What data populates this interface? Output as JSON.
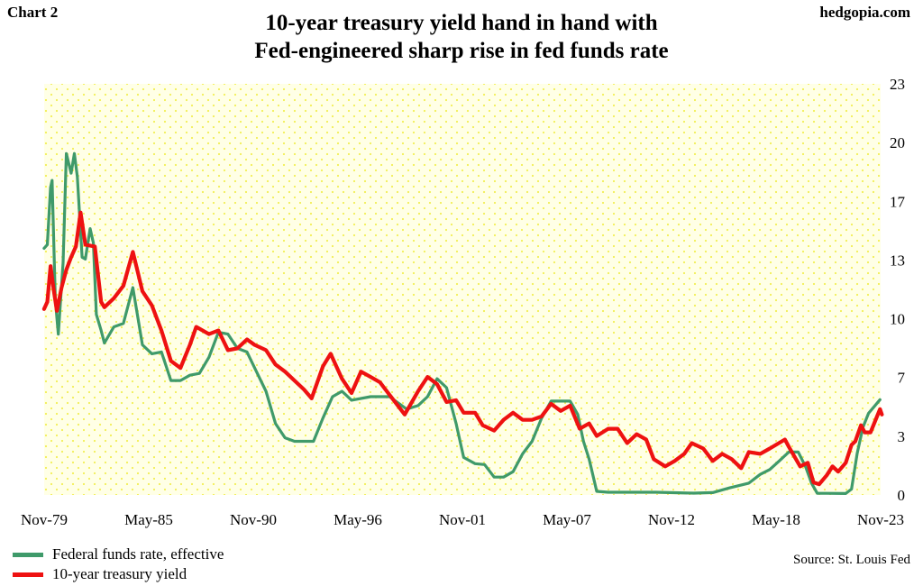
{
  "header": {
    "chart_label": "Chart 2",
    "brand": "hedgopia.com",
    "title_line1": "10-year treasury yield hand in hand with",
    "title_line2": "Fed-engineered sharp rise in fed funds rate"
  },
  "footer": {
    "source": "Source: St. Louis Fed"
  },
  "colors": {
    "fed_funds": "#3f9a6a",
    "treasury": "#ee1111",
    "plot_background": "#ffffe6",
    "plot_dots": "#f2ef55"
  },
  "chart_data": {
    "type": "line",
    "title": "10-year treasury yield hand in hand with Fed-engineered sharp rise in fed funds rate",
    "x_tick_labels": [
      "Nov-79",
      "May-85",
      "Nov-90",
      "May-96",
      "Nov-01",
      "May-07",
      "Nov-12",
      "May-18",
      "Nov-23"
    ],
    "y_tick_labels": [
      "23",
      "20",
      "17",
      "13",
      "10",
      "7",
      "3",
      "0"
    ],
    "x_range": [
      "1979-11",
      "2023-11"
    ],
    "y_range": [
      0,
      23
    ],
    "y_axis_side": "right",
    "grid": "dotted background",
    "legend_position": "bottom-left",
    "series": [
      {
        "name": "Federal funds rate, effective",
        "color": "#3f9a6a",
        "x": [
          1979.83,
          1980.0,
          1980.17,
          1980.25,
          1980.42,
          1980.58,
          1980.83,
          1981.0,
          1981.25,
          1981.42,
          1981.58,
          1981.83,
          1982.0,
          1982.25,
          1982.42,
          1982.58,
          1982.83,
          1983.0,
          1983.5,
          1984.0,
          1984.5,
          1985.0,
          1985.5,
          1986.0,
          1986.5,
          1987.0,
          1987.5,
          1988.0,
          1988.5,
          1989.0,
          1989.5,
          1990.0,
          1990.5,
          1991.0,
          1991.5,
          1992.0,
          1992.5,
          1993.0,
          1993.5,
          1994.0,
          1994.5,
          1995.0,
          1995.5,
          1996.0,
          1997.0,
          1998.0,
          1998.9,
          1999.5,
          2000.0,
          2000.5,
          2001.0,
          2001.5,
          2001.9,
          2002.5,
          2003.0,
          2003.5,
          2004.0,
          2004.5,
          2005.0,
          2005.5,
          2006.0,
          2006.5,
          2007.0,
          2007.5,
          2007.9,
          2008.2,
          2008.5,
          2008.9,
          2009.5,
          2010.0,
          2012.0,
          2014.0,
          2015.0,
          2015.9,
          2016.9,
          2017.5,
          2018.0,
          2018.5,
          2019.0,
          2019.5,
          2019.9,
          2020.2,
          2020.5,
          2021.0,
          2022.0,
          2022.3,
          2022.6,
          2022.9,
          2023.2,
          2023.6,
          2023.8
        ],
        "y": [
          13.8,
          14.0,
          17.2,
          17.6,
          10.9,
          9.0,
          13.0,
          19.1,
          18.0,
          19.1,
          17.8,
          13.3,
          13.2,
          14.9,
          14.1,
          10.1,
          9.2,
          8.5,
          9.4,
          9.6,
          11.6,
          8.4,
          7.9,
          8.0,
          6.4,
          6.4,
          6.7,
          6.8,
          7.7,
          9.1,
          9.0,
          8.2,
          8.0,
          6.9,
          5.8,
          4.0,
          3.2,
          3.0,
          3.0,
          3.0,
          4.3,
          5.5,
          5.8,
          5.3,
          5.5,
          5.5,
          4.8,
          5.0,
          5.5,
          6.5,
          6.0,
          4.0,
          2.1,
          1.75,
          1.7,
          1.0,
          1.0,
          1.3,
          2.3,
          3.0,
          4.3,
          5.25,
          5.25,
          5.25,
          4.5,
          3.0,
          2.0,
          0.2,
          0.15,
          0.15,
          0.15,
          0.1,
          0.13,
          0.4,
          0.66,
          1.15,
          1.42,
          1.9,
          2.4,
          2.4,
          1.55,
          0.65,
          0.09,
          0.09,
          0.08,
          0.33,
          2.33,
          3.78,
          4.57,
          5.08,
          5.33
        ]
      },
      {
        "name": "10-year treasury yield",
        "color": "#ee1111",
        "x": [
          1979.83,
          1980.0,
          1980.17,
          1980.33,
          1980.5,
          1980.75,
          1981.0,
          1981.25,
          1981.5,
          1981.75,
          1982.0,
          1982.5,
          1982.83,
          1983.0,
          1983.5,
          1984.0,
          1984.5,
          1985.0,
          1985.5,
          1986.0,
          1986.5,
          1987.0,
          1987.5,
          1987.83,
          1988.5,
          1989.0,
          1989.5,
          1990.0,
          1990.5,
          1990.9,
          1991.5,
          1992.0,
          1992.5,
          1993.0,
          1993.5,
          1993.9,
          1994.5,
          1994.9,
          1995.5,
          1996.0,
          1996.5,
          1997.0,
          1997.5,
          1998.0,
          1998.8,
          1999.5,
          2000.0,
          2000.5,
          2001.0,
          2001.5,
          2001.9,
          2002.5,
          2002.9,
          2003.5,
          2004.0,
          2004.5,
          2005.0,
          2005.5,
          2006.0,
          2006.5,
          2007.0,
          2007.5,
          2008.0,
          2008.5,
          2008.9,
          2009.5,
          2010.0,
          2010.5,
          2011.0,
          2011.5,
          2011.9,
          2012.5,
          2013.0,
          2013.5,
          2013.9,
          2014.5,
          2015.0,
          2015.5,
          2016.0,
          2016.5,
          2016.9,
          2017.5,
          2018.0,
          2018.8,
          2019.0,
          2019.6,
          2020.0,
          2020.3,
          2020.6,
          2021.0,
          2021.3,
          2021.6,
          2022.0,
          2022.3,
          2022.5,
          2022.8,
          2023.0,
          2023.3,
          2023.8,
          2023.9
        ],
        "y": [
          10.4,
          10.8,
          12.8,
          11.5,
          10.3,
          11.6,
          12.6,
          13.3,
          13.9,
          15.8,
          14.0,
          13.9,
          10.8,
          10.5,
          11.0,
          11.7,
          13.6,
          11.4,
          10.6,
          9.2,
          7.5,
          7.1,
          8.4,
          9.4,
          9.0,
          9.2,
          8.1,
          8.2,
          8.7,
          8.4,
          8.1,
          7.3,
          6.9,
          6.4,
          5.9,
          5.4,
          7.2,
          7.9,
          6.5,
          5.7,
          6.9,
          6.6,
          6.3,
          5.6,
          4.5,
          5.8,
          6.6,
          6.2,
          5.2,
          5.3,
          4.6,
          4.6,
          3.9,
          3.6,
          4.2,
          4.6,
          4.2,
          4.2,
          4.4,
          5.1,
          4.7,
          5.0,
          3.7,
          4.0,
          3.3,
          3.7,
          3.7,
          2.9,
          3.4,
          3.1,
          2.0,
          1.6,
          1.9,
          2.3,
          2.9,
          2.6,
          1.9,
          2.3,
          2.0,
          1.5,
          2.4,
          2.3,
          2.6,
          3.1,
          2.7,
          1.6,
          1.8,
          0.7,
          0.6,
          1.1,
          1.6,
          1.3,
          1.8,
          2.8,
          3.0,
          3.9,
          3.5,
          3.5,
          4.8,
          4.5
        ]
      }
    ]
  }
}
